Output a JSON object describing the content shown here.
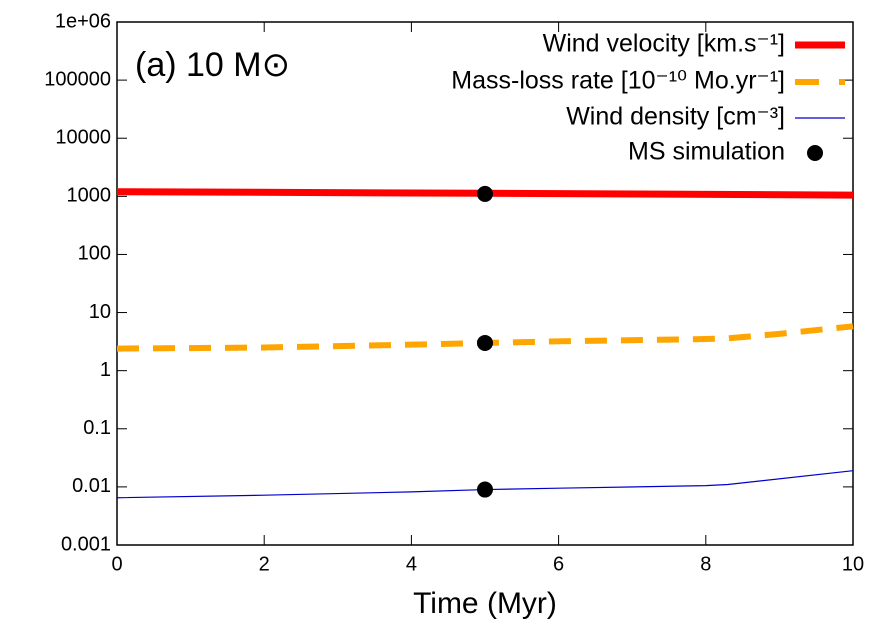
{
  "chart_data": {
    "type": "line",
    "annotation": "(a)  10 M⊙",
    "x_label": "Time (Myr)",
    "xlim": [
      0,
      10
    ],
    "xticks": [
      0,
      2,
      4,
      6,
      8,
      10
    ],
    "ylim": [
      0.001,
      1000000
    ],
    "ylog": true,
    "yticks": [
      {
        "value": 1000000,
        "label": "1e+06"
      },
      100000,
      10000,
      1000,
      100,
      10,
      1,
      0.1,
      0.01,
      0.001
    ],
    "legend": "top-right",
    "series": [
      {
        "name": "Wind velocity [km.s⁻¹]",
        "color": "#ff0000",
        "style": "thick",
        "x": [
          0,
          5,
          10
        ],
        "values": [
          1200,
          1130,
          1050
        ]
      },
      {
        "name": "Mass-loss rate [10⁻¹⁰ Mo.yr⁻¹]",
        "color": "#ffa500",
        "style": "dashed",
        "x": [
          0,
          2,
          4,
          5,
          6,
          8,
          8.3,
          9,
          10
        ],
        "values": [
          2.4,
          2.5,
          2.8,
          3,
          3.2,
          3.5,
          3.6,
          4.3,
          5.8
        ]
      },
      {
        "name": "Wind density [cm⁻³]",
        "color": "#0000cc",
        "style": "thin",
        "x": [
          0,
          2,
          4,
          5,
          6,
          8,
          8.3,
          10
        ],
        "values": [
          0.0065,
          0.0072,
          0.0082,
          0.009,
          0.0095,
          0.0105,
          0.011,
          0.019
        ]
      },
      {
        "name": "MS simulation",
        "color": "#000000",
        "style": "points",
        "x": [
          5,
          5,
          5
        ],
        "values": [
          1100,
          3,
          0.009
        ]
      }
    ]
  }
}
